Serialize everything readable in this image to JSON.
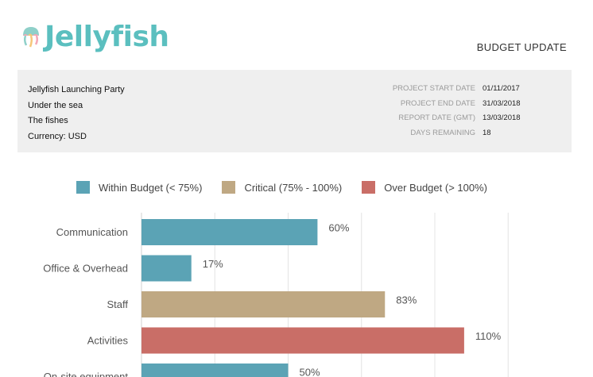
{
  "header": {
    "logo_text": "Jellyfish",
    "doc_title": "BUDGET UPDATE"
  },
  "project": {
    "name": "Jellyfish Launching Party",
    "location": "Under the sea",
    "client": "The fishes",
    "currency": "Currency: USD",
    "fields": [
      {
        "label": "PROJECT START DATE",
        "value": "01/11/2017"
      },
      {
        "label": "PROJECT END DATE",
        "value": "31/03/2018"
      },
      {
        "label": "REPORT DATE (GMT)",
        "value": "13/03/2018"
      },
      {
        "label": "DAYS REMAINING",
        "value": "18"
      }
    ]
  },
  "legend": [
    {
      "label": "Within Budget (< 75%)",
      "color": "#5ba3b5"
    },
    {
      "label": "Critical (75% - 100%)",
      "color": "#bfa883"
    },
    {
      "label": "Over Budget (> 100%)",
      "color": "#c96e67"
    }
  ],
  "chart_data": {
    "type": "bar",
    "orientation": "horizontal",
    "categories": [
      "Communication",
      "Office & Overhead",
      "Staff",
      "Activities",
      "On-site equipment"
    ],
    "values": [
      60,
      17,
      83,
      110,
      50
    ],
    "value_labels": [
      "60%",
      "17%",
      "83%",
      "110%",
      "50%"
    ],
    "bar_colors": [
      "#5ba3b5",
      "#5ba3b5",
      "#bfa883",
      "#c96e67",
      "#5ba3b5"
    ],
    "xlim": [
      0,
      125
    ],
    "grid": true,
    "legend_position": "top"
  }
}
